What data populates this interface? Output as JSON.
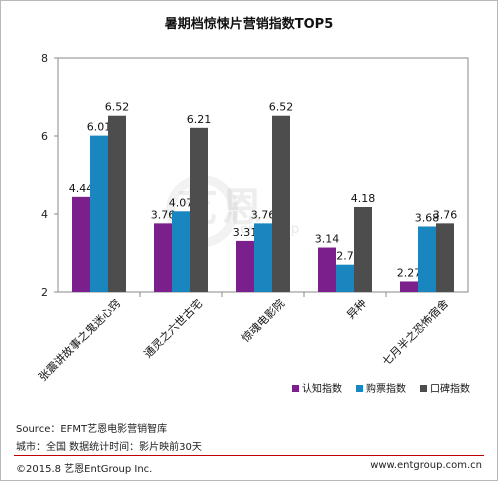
{
  "chart_data": {
    "type": "bar",
    "title": "暑期档惊悚片营销指数TOP5",
    "categories": [
      "张震讲故事之鬼迷心窍",
      "通灵之六世古宅",
      "惊魂电影院",
      "异种",
      "七月半之恐怖宿舍"
    ],
    "series": [
      {
        "name": "认知指数",
        "color": "#7b1f8c",
        "values": [
          4.44,
          3.76,
          3.31,
          3.14,
          2.27
        ]
      },
      {
        "name": "购票指数",
        "color": "#1a86c0",
        "values": [
          6.01,
          4.07,
          3.76,
          2.7,
          3.68
        ]
      },
      {
        "name": "口碑指数",
        "color": "#4d4d4d",
        "values": [
          6.52,
          6.21,
          6.52,
          4.18,
          3.76
        ]
      }
    ],
    "value_labels": [
      [
        "4.44",
        "6.01",
        "6.52"
      ],
      [
        "3.76",
        "4.07",
        "6.21"
      ],
      [
        "3.31",
        "3.76",
        "6.52"
      ],
      [
        "3.14",
        "2.7",
        "4.18"
      ],
      [
        "2.27",
        "3.68",
        "3.76"
      ]
    ],
    "ylim": [
      2,
      8
    ],
    "yticks": [
      "2",
      "4",
      "6",
      "8"
    ],
    "grid": false,
    "legend_position": "bottom-right"
  },
  "watermark": {
    "brand": "艺恩",
    "sub": "entgroup"
  },
  "source_line": "Source：EFMT艺恩电影营销智库",
  "note_line": "城市：全国  数据统计时间：影片映前30天",
  "footer_left": "©2015.8 艺恩EntGroup Inc.",
  "footer_right": "www.entgroup.com.cn"
}
